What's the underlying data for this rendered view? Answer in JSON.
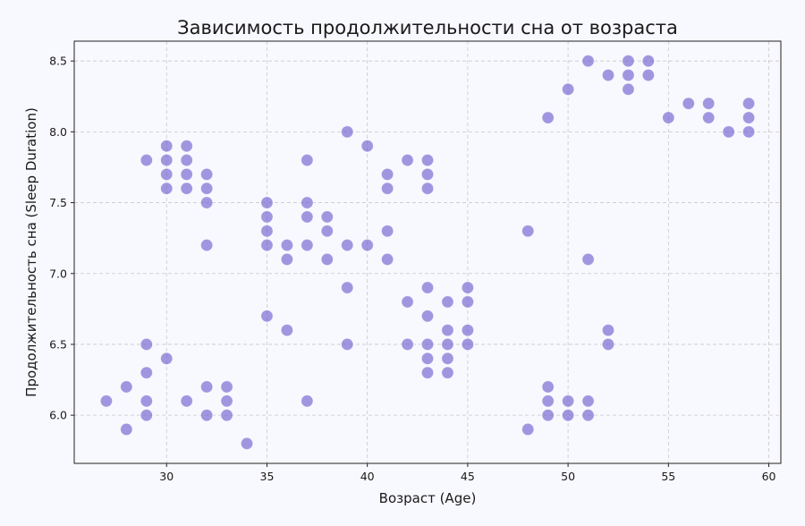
{
  "chart_data": {
    "type": "scatter",
    "title": "Зависимость продолжительности сна от возраста",
    "xlabel": "Возраст (Age)",
    "ylabel": "Продолжительность сна (Sleep Duration)",
    "xlim": [
      25.4,
      60.6
    ],
    "ylim": [
      5.66,
      8.64
    ],
    "xticks": [
      30,
      35,
      40,
      45,
      50,
      55,
      60
    ],
    "yticks": [
      6.0,
      6.5,
      7.0,
      7.5,
      8.0,
      8.5
    ],
    "grid": true,
    "point_color": "#6a5acd",
    "points": [
      {
        "x": 27,
        "y": 6.1
      },
      {
        "x": 28,
        "y": 6.2
      },
      {
        "x": 28,
        "y": 5.9
      },
      {
        "x": 29,
        "y": 7.8
      },
      {
        "x": 29,
        "y": 6.5
      },
      {
        "x": 29,
        "y": 6.3
      },
      {
        "x": 29,
        "y": 6.1
      },
      {
        "x": 29,
        "y": 6.0
      },
      {
        "x": 30,
        "y": 7.9
      },
      {
        "x": 30,
        "y": 7.8
      },
      {
        "x": 30,
        "y": 7.7
      },
      {
        "x": 30,
        "y": 7.6
      },
      {
        "x": 30,
        "y": 6.4
      },
      {
        "x": 31,
        "y": 7.9
      },
      {
        "x": 31,
        "y": 7.8
      },
      {
        "x": 31,
        "y": 7.7
      },
      {
        "x": 31,
        "y": 7.6
      },
      {
        "x": 31,
        "y": 6.1
      },
      {
        "x": 32,
        "y": 7.7
      },
      {
        "x": 32,
        "y": 7.6
      },
      {
        "x": 32,
        "y": 7.5
      },
      {
        "x": 32,
        "y": 7.2
      },
      {
        "x": 32,
        "y": 6.2
      },
      {
        "x": 32,
        "y": 6.0
      },
      {
        "x": 33,
        "y": 6.2
      },
      {
        "x": 33,
        "y": 6.1
      },
      {
        "x": 33,
        "y": 6.0
      },
      {
        "x": 34,
        "y": 5.8
      },
      {
        "x": 35,
        "y": 7.5
      },
      {
        "x": 35,
        "y": 7.4
      },
      {
        "x": 35,
        "y": 7.3
      },
      {
        "x": 35,
        "y": 7.2
      },
      {
        "x": 35,
        "y": 6.7
      },
      {
        "x": 36,
        "y": 7.2
      },
      {
        "x": 36,
        "y": 7.1
      },
      {
        "x": 36,
        "y": 6.6
      },
      {
        "x": 37,
        "y": 7.8
      },
      {
        "x": 37,
        "y": 7.5
      },
      {
        "x": 37,
        "y": 7.4
      },
      {
        "x": 37,
        "y": 7.2
      },
      {
        "x": 37,
        "y": 6.1
      },
      {
        "x": 38,
        "y": 7.4
      },
      {
        "x": 38,
        "y": 7.3
      },
      {
        "x": 38,
        "y": 7.1
      },
      {
        "x": 39,
        "y": 8.0
      },
      {
        "x": 39,
        "y": 7.2
      },
      {
        "x": 39,
        "y": 6.9
      },
      {
        "x": 39,
        "y": 6.5
      },
      {
        "x": 40,
        "y": 7.9
      },
      {
        "x": 40,
        "y": 7.2
      },
      {
        "x": 41,
        "y": 7.7
      },
      {
        "x": 41,
        "y": 7.6
      },
      {
        "x": 41,
        "y": 7.3
      },
      {
        "x": 41,
        "y": 7.1
      },
      {
        "x": 42,
        "y": 7.8
      },
      {
        "x": 42,
        "y": 6.8
      },
      {
        "x": 42,
        "y": 6.5
      },
      {
        "x": 43,
        "y": 7.8
      },
      {
        "x": 43,
        "y": 7.7
      },
      {
        "x": 43,
        "y": 7.6
      },
      {
        "x": 43,
        "y": 6.9
      },
      {
        "x": 43,
        "y": 6.7
      },
      {
        "x": 43,
        "y": 6.5
      },
      {
        "x": 43,
        "y": 6.4
      },
      {
        "x": 43,
        "y": 6.3
      },
      {
        "x": 44,
        "y": 6.8
      },
      {
        "x": 44,
        "y": 6.6
      },
      {
        "x": 44,
        "y": 6.5
      },
      {
        "x": 44,
        "y": 6.4
      },
      {
        "x": 44,
        "y": 6.3
      },
      {
        "x": 45,
        "y": 6.9
      },
      {
        "x": 45,
        "y": 6.8
      },
      {
        "x": 45,
        "y": 6.6
      },
      {
        "x": 45,
        "y": 6.5
      },
      {
        "x": 48,
        "y": 7.3
      },
      {
        "x": 48,
        "y": 5.9
      },
      {
        "x": 49,
        "y": 8.1
      },
      {
        "x": 49,
        "y": 6.2
      },
      {
        "x": 49,
        "y": 6.1
      },
      {
        "x": 49,
        "y": 6.0
      },
      {
        "x": 50,
        "y": 8.3
      },
      {
        "x": 50,
        "y": 6.1
      },
      {
        "x": 50,
        "y": 6.0
      },
      {
        "x": 51,
        "y": 8.5
      },
      {
        "x": 51,
        "y": 7.1
      },
      {
        "x": 51,
        "y": 6.1
      },
      {
        "x": 51,
        "y": 6.0
      },
      {
        "x": 52,
        "y": 8.4
      },
      {
        "x": 52,
        "y": 6.6
      },
      {
        "x": 52,
        "y": 6.5
      },
      {
        "x": 53,
        "y": 8.5
      },
      {
        "x": 53,
        "y": 8.4
      },
      {
        "x": 53,
        "y": 8.3
      },
      {
        "x": 54,
        "y": 8.5
      },
      {
        "x": 54,
        "y": 8.4
      },
      {
        "x": 55,
        "y": 8.1
      },
      {
        "x": 56,
        "y": 8.2
      },
      {
        "x": 57,
        "y": 8.2
      },
      {
        "x": 57,
        "y": 8.1
      },
      {
        "x": 58,
        "y": 8.0
      },
      {
        "x": 59,
        "y": 8.2
      },
      {
        "x": 59,
        "y": 8.1
      },
      {
        "x": 59,
        "y": 8.0
      }
    ]
  }
}
